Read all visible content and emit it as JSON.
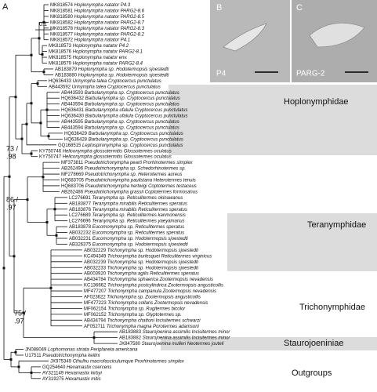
{
  "panel_labels": [
    "A",
    "B",
    "C"
  ],
  "scale_label": "0.1",
  "images": [
    {
      "label": "P4"
    },
    {
      "label": "PARG-2"
    }
  ],
  "support": [
    [
      "73 /",
      ".98"
    ],
    [
      "86 /",
      ".97"
    ],
    [
      "75 /",
      ".97"
    ]
  ],
  "families": [
    "Hoplonymphidae",
    "Teranymphidae",
    "Trichonymphidae",
    "Staurojoeniniae",
    "Outgroups"
  ],
  "leaves": [
    {
      "id": "MK818574",
      "name": "Hoplonympha natator P4.3"
    },
    {
      "id": "MK818581",
      "name": "Hoplonympha natator PARG2-8.6"
    },
    {
      "id": "MK818580",
      "name": "Hoplonympha natator PARG2-8.5"
    },
    {
      "id": "MK818582",
      "name": "Hoplonympha natator PARG2-8.7"
    },
    {
      "id": "MK818578",
      "name": "Hoplonympha natator PARG2-8.3"
    },
    {
      "id": "MK818577",
      "name": "Hoplonympha natator PARG2-8.2"
    },
    {
      "id": "MK818572",
      "name": "Hoplonympha natator P4.1"
    },
    {
      "id": "MK818573",
      "name": "Hoplonympha natator P4.2"
    },
    {
      "id": "MK818576",
      "name": "Hoplonympha natator PARG2-8.1"
    },
    {
      "id": "MK818575",
      "name": "Hoplonympha natator env."
    },
    {
      "id": "MK818579",
      "name": "Hoplonympha natator PARG2-8.4"
    },
    {
      "id": "AB183879",
      "name": "Hoplonympha sp. Hodotermopsis sjoestedti"
    },
    {
      "id": "AB183880",
      "name": "Hoplonympha sp. Hodotermopsis sjoestedti"
    },
    {
      "id": "HQ636433",
      "name": "Urinympha talea Cryptocercus punctulatus"
    },
    {
      "id": "AB443592",
      "name": "Urinympha talea Cryptocercus punctulatus"
    },
    {
      "id": "AB443593",
      "name": "Barbulanympha sp. Cryptocercus punctulatus"
    },
    {
      "id": "HQ636432",
      "name": "Barbulanympha sp. Cryptocercus punctulatus"
    },
    {
      "id": "AB443594",
      "name": "Barbulanympha sp. Cryptocercus punctulatus"
    },
    {
      "id": "HQ636431",
      "name": "Barbulanympha ufalula Cryptocercus punctulatus"
    },
    {
      "id": "HQ636430",
      "name": "Barbulanympha ufalula Cryptocercus punctulatus"
    },
    {
      "id": "AB443595",
      "name": "Barbulanympha sp. Cryptocercus punctulatus"
    },
    {
      "id": "AB443594",
      "name": "Barbulanympha sp. Cryptocercus punctulatus"
    },
    {
      "id": "HQ636429",
      "name": "Barbulanympha sp. Cryptocercus punctulatus"
    },
    {
      "id": "HQ636428",
      "name": "Barbulanympha sp. Cryptocercus punctulatus"
    },
    {
      "id": "GQ168515",
      "name": "Leptospironympha sp. Cryptocercus punctulatus"
    },
    {
      "id": "KY750746",
      "name": "Heliconympha glossotermitis Glossotermes oculatus"
    },
    {
      "id": "KY750747",
      "name": "Heliconympha glossotermitis Glossotermes oculatus"
    },
    {
      "id": "MF373811",
      "name": "Pseudotrichonympha pearti Prorhinotermes simplex"
    },
    {
      "id": "AB262496",
      "name": "Pseudotrichonympha sp. Schedorhinotermes sp."
    },
    {
      "id": "MF278669",
      "name": "Pseudotrichonympha sp. Heterotermes aureus"
    },
    {
      "id": "HQ683705",
      "name": "Pseudotrichonympha paulistana Heterotermes tenuis"
    },
    {
      "id": "HQ683706",
      "name": "Pseudotrichonympha hertwigi Coptotermes testaceus"
    },
    {
      "id": "AB262486",
      "name": "Pseudotrichonympha grassii Coptotermes formosanus"
    },
    {
      "id": "LC276691",
      "name": "Teranympha sp. Reticulitermes okinawanus"
    },
    {
      "id": "AB183877",
      "name": "Teranympha mirabilis Reticulitermes speratus"
    },
    {
      "id": "AB183876",
      "name": "Teranympha mirabilis Reticulitermes speratus"
    },
    {
      "id": "LC276689",
      "name": "Teranympha sp. Reticulitermes kanmonensis"
    },
    {
      "id": "LC276696",
      "name": "Teranympha sp. Reticulitermes yaeyamanus"
    },
    {
      "id": "AB183878",
      "name": "Eucomonympha sp. Reticulitermes speratus"
    },
    {
      "id": "AB032232",
      "name": "Eucomonympha sp. Reticulitermes speratus"
    },
    {
      "id": "AB032231",
      "name": "Eucomonympha sp. Hodotermopsis sjoestedti"
    },
    {
      "id": "AB326375",
      "name": "Eucomonympha sp. Hodotermopsis sjoestedti"
    },
    {
      "id": "AB032229",
      "name": "Trichonympha sp. Hodotermopsis sjoestedti"
    },
    {
      "id": "KC494349",
      "name": "Trichonympha burlesquei Reticulitermes virginicus"
    },
    {
      "id": "AB032239",
      "name": "Trichonympha sp. Hodotermopsis sjoestedti"
    },
    {
      "id": "AB032233",
      "name": "Trichonympha sp. Hodotermopsis sjoestedti"
    },
    {
      "id": "AB003920",
      "name": "Trichonympha agilis Reticulitermes speratus"
    },
    {
      "id": "AB434784",
      "name": "Trichonympha sphaerica Zootermopsis nevadensis"
    },
    {
      "id": "KC136662",
      "name": "Trichonympha postcylindrica Zootermopsis angusticollis"
    },
    {
      "id": "MF477207",
      "name": "Trichonympha campanula Zootermopsis nevadensis"
    },
    {
      "id": "AF023622",
      "name": "Trichonympha sp. Zootermopsis angusticollis"
    },
    {
      "id": "MF477223",
      "name": "Trichonympha collaris Zootermopsis nevadensis"
    },
    {
      "id": "MF062154",
      "name": "Trichonympha sp. Rugitermes bicolor"
    },
    {
      "id": "MF062152",
      "name": "Trichonympha sp. Glyptotermes sp."
    },
    {
      "id": "AB434794",
      "name": "Trichonympha chattoni Incisitermes schwarzi"
    },
    {
      "id": "AF052711",
      "name": "Trichonympha magna Porotermes adamsoni"
    },
    {
      "id": "AB183883",
      "name": "Staurojoenina assimilis Incisitermes minor"
    },
    {
      "id": "AB183882",
      "name": "Staurojoenina assimilis Incisitermes minor"
    },
    {
      "id": "JX847580",
      "name": "Staurojoenina mulleri Neotermes jouteli"
    },
    {
      "id": "JN088049",
      "name": "Lophomonas striata Periplaneta americana"
    },
    {
      "id": "U17511",
      "name": "Pseudotrichonympha keilini"
    },
    {
      "id": "JX975349",
      "name": "Cthulhu macrofasciculumque Prorhinotermes simplex"
    },
    {
      "id": "GQ254640",
      "name": "Hexamastix coercens"
    },
    {
      "id": "AY321149",
      "name": "Hexamastix kirbyi"
    },
    {
      "id": "AY319275",
      "name": "Hexamastix mitis"
    }
  ]
}
